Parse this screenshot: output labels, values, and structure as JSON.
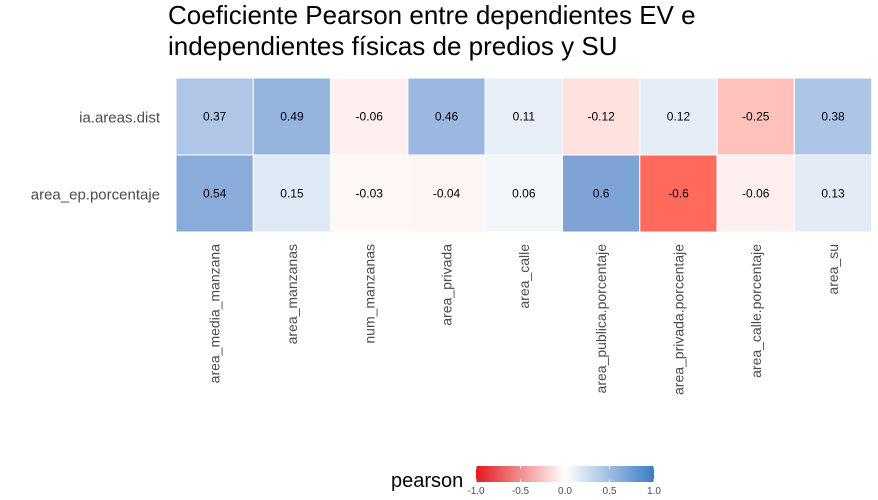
{
  "chart_data": {
    "type": "heatmap",
    "title": "Coeficiente Pearson entre dependientes EV e\nindependientes físicas de predios y SU",
    "xlabel": "",
    "ylabel": "",
    "x_categories": [
      "area_media_manzana",
      "area_manzanas",
      "num_manzanas",
      "area_privada",
      "area_calle",
      "area_publica.porcentaje",
      "area_privada.porcentaje",
      "area_calle.porcentaje",
      "area_su"
    ],
    "y_categories": [
      "ia.areas.dist",
      "area_ep.porcentaje"
    ],
    "values": [
      [
        0.37,
        0.49,
        -0.06,
        0.46,
        0.11,
        -0.12,
        0.12,
        -0.25,
        0.38
      ],
      [
        0.54,
        0.15,
        -0.03,
        -0.04,
        0.06,
        0.6,
        -0.6,
        -0.06,
        0.13
      ]
    ],
    "value_labels": [
      [
        "0.37",
        "0.49",
        "-0.06",
        "0.46",
        "0.11",
        "-0.12",
        "0.12",
        "-0.25",
        "0.38"
      ],
      [
        "0.54",
        "0.15",
        "-0.03",
        "-0.04",
        "0.06",
        "0.6",
        "-0.6",
        "-0.06",
        "0.13"
      ]
    ],
    "legend": {
      "title": "pearson",
      "position": "bottom",
      "ticks": [
        -1.0,
        -0.5,
        0.0,
        0.5,
        1.0
      ],
      "tick_labels": [
        "-1.0",
        "-0.5",
        "0.0",
        "0.5",
        "1.0"
      ],
      "range": [
        -1,
        1
      ]
    },
    "colors": {
      "low": "#e41a1c",
      "mid": "#ffffff",
      "high": "#377eb8",
      "grid": "#ffffff"
    }
  }
}
